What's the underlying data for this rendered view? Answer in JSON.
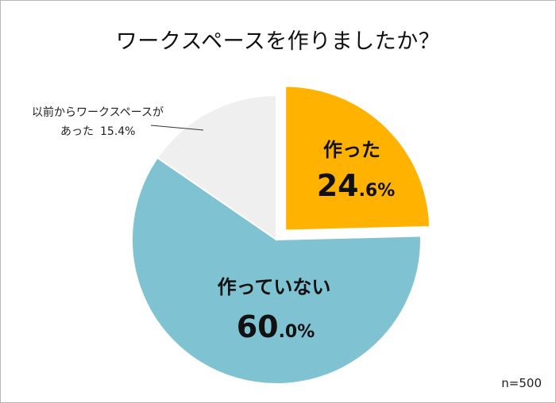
{
  "chart_data": {
    "type": "pie",
    "title": "ワークスペースを作りましたか？",
    "sample_size_label": "n=500",
    "slices": [
      {
        "label": "作った",
        "value": 24.6,
        "value_text_main": "24",
        "value_text_sub": ".6%",
        "color": "#FFB300",
        "exploded": true
      },
      {
        "label": "作っていない",
        "value": 60.0,
        "value_text_main": "60",
        "value_text_sub": ".0%",
        "color": "#7FC3D3",
        "exploded": false
      },
      {
        "label_line1": "以前からワークスペースが",
        "label_line2": "あった",
        "value": 15.4,
        "value_text": "15.4%",
        "color": "#EFEFEF",
        "exploded": false
      }
    ],
    "legend": "none"
  }
}
